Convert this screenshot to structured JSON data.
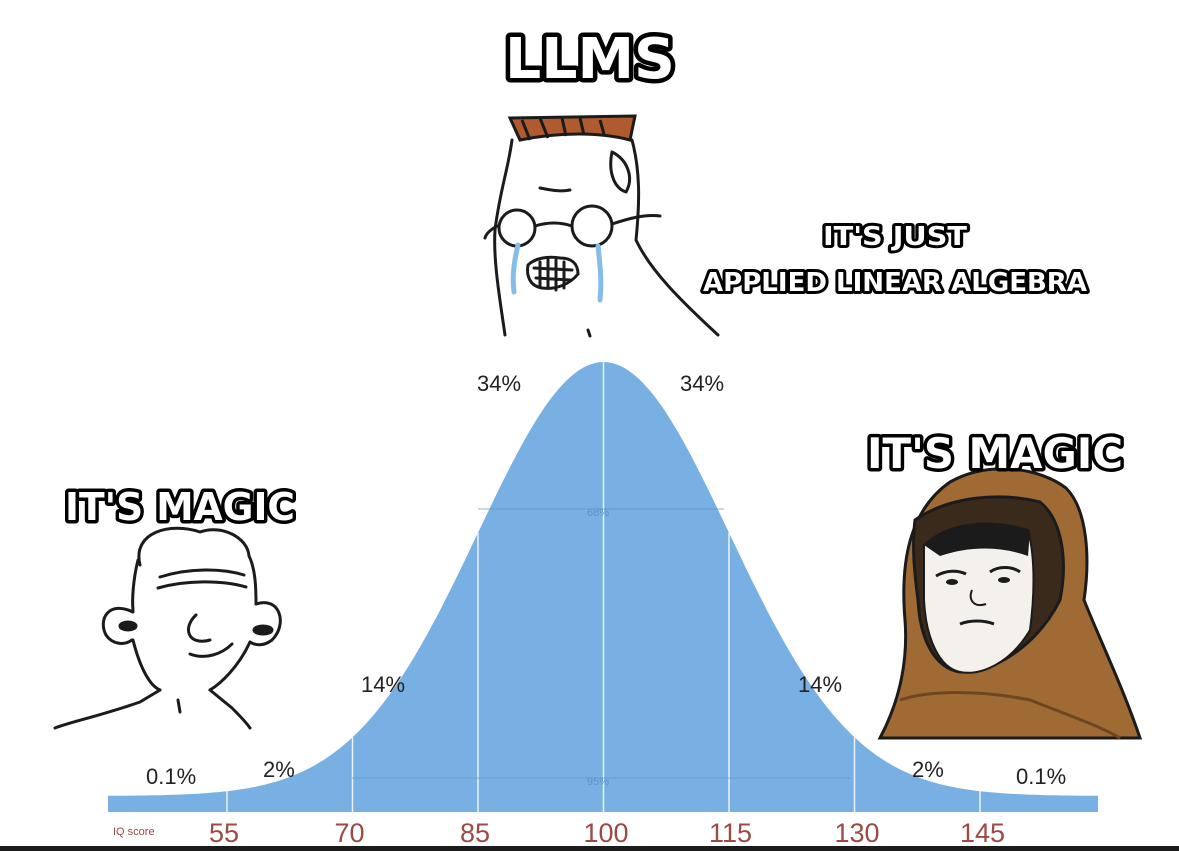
{
  "captions": {
    "top": "LLMS",
    "middle": [
      "IT'S JUST",
      "APPLIED LINEAR ALGEBRA"
    ],
    "left": "IT'S MAGIC",
    "right": "IT'S MAGIC"
  },
  "chart_data": {
    "type": "area",
    "title": "",
    "xlabel": "IQ score",
    "x_ticks": [
      "55",
      "70",
      "85",
      "100",
      "115",
      "130",
      "145"
    ],
    "percentages": {
      "far_left": "0.1%",
      "left_2": "2%",
      "left_14": "14%",
      "left_34": "34%",
      "right_34": "34%",
      "right_14": "14%",
      "right_2": "2%",
      "far_right": "0.1%"
    },
    "inner_labels": {
      "band_68": "68%",
      "band_95": "95%"
    },
    "mean": 100,
    "sd": 15,
    "fill_color": "#78b0e4"
  },
  "characters": {
    "left": "wojak-simpleton",
    "middle": "wojak-crying-glasses",
    "right": "hooded-monk"
  }
}
